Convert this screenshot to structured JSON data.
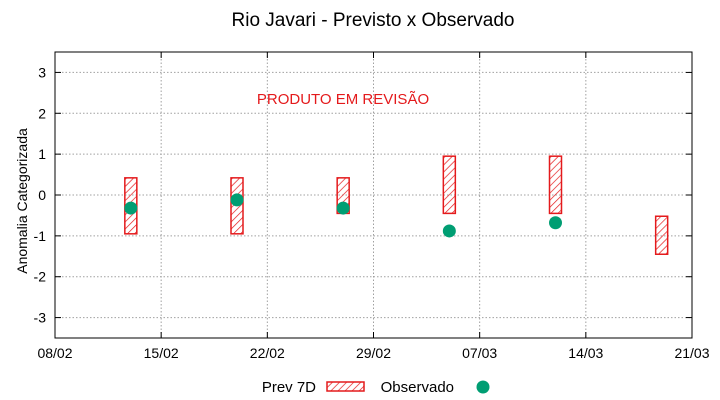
{
  "chart_data": {
    "type": "range-bar-scatter",
    "title": "Rio Javari - Previsto x Observado",
    "ylabel": "Anomalia Categorizada",
    "xlabel": "",
    "ylim": [
      -3.5,
      3.5
    ],
    "yticks": [
      "3",
      "2",
      "1",
      "0",
      "-1",
      "-2",
      "-3"
    ],
    "ytick_values": [
      3,
      2,
      1,
      0,
      -1,
      -2,
      -3
    ],
    "xtick_labels": [
      "08/02",
      "15/02",
      "22/02",
      "29/02",
      "07/03",
      "14/03",
      "21/03"
    ],
    "xtick_days": [
      0,
      7,
      14,
      21,
      28,
      35,
      42
    ],
    "xlim_days": [
      0,
      42
    ],
    "grid": true,
    "annotation": "PRODUTO EM REVISÃO",
    "series": [
      {
        "name": "Prev 7D",
        "kind": "range",
        "color": "#e41a1c",
        "points": [
          {
            "day": 5,
            "low": -0.95,
            "high": 0.42
          },
          {
            "day": 12,
            "low": -0.95,
            "high": 0.42
          },
          {
            "day": 19,
            "low": -0.45,
            "high": 0.42
          },
          {
            "day": 26,
            "low": -0.45,
            "high": 0.95
          },
          {
            "day": 33,
            "low": -0.45,
            "high": 0.95
          },
          {
            "day": 40,
            "low": -1.45,
            "high": -0.52
          }
        ]
      },
      {
        "name": "Observado",
        "kind": "point",
        "color": "#009e73",
        "points": [
          {
            "day": 5,
            "y": -0.32
          },
          {
            "day": 12,
            "y": -0.12
          },
          {
            "day": 19,
            "y": -0.32
          },
          {
            "day": 26,
            "y": -0.88
          },
          {
            "day": 33,
            "y": -0.68
          }
        ]
      }
    ],
    "legend": {
      "position": "bottom",
      "items": [
        {
          "label": "Prev 7D",
          "symbol": "hatched-box"
        },
        {
          "label": "Observado",
          "symbol": "dot"
        }
      ]
    }
  }
}
